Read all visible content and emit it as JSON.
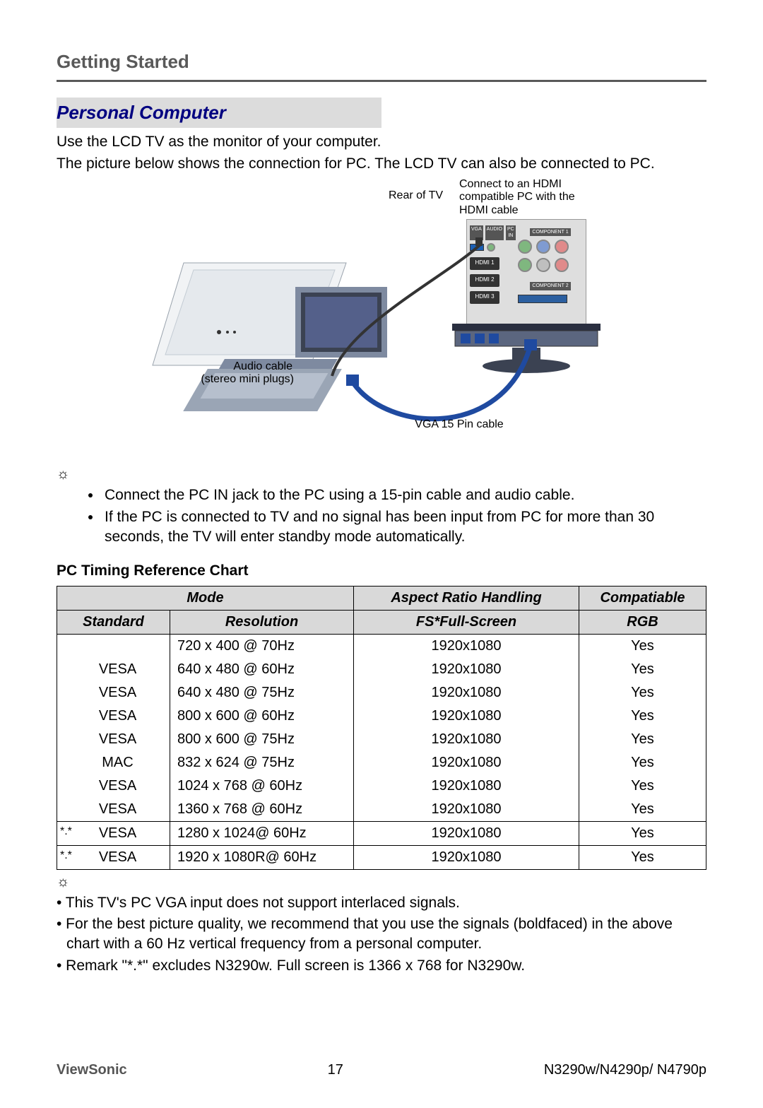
{
  "header": {
    "title": "Getting Started"
  },
  "section": {
    "title": "Personal Computer"
  },
  "intro": {
    "p1": "Use the LCD TV as the monitor of your computer.",
    "p2": "The picture below shows the connection for PC. The LCD TV can also be connected to PC."
  },
  "diagram": {
    "rear_label": "Rear of TV",
    "hdmi_note": "Connect to an HDMI compatible PC with the HDMI cable",
    "audio_label_1": "Audio cable",
    "audio_label_2": "(stereo mini plugs)",
    "vga_label": "VGA 15 Pin cable",
    "port_vga": "VGA",
    "port_audio": "AUDIO",
    "port_pcin": "PC IN",
    "port_hdmi1": "HDMI 1",
    "port_hdmi2": "HDMI 2",
    "port_hdmi3": "HDMI 3",
    "port_comp1": "COMPONENT 1",
    "port_comp2": "COMPONENT 2",
    "jack_colors": {
      "green": "#7fb77f",
      "blue": "#7f9bd1",
      "red": "#e08a8a",
      "gray": "#bfbfbf"
    }
  },
  "sun_glyph": "☼",
  "bullets": {
    "b1": "Connect the PC IN jack to the PC using a 15-pin cable and audio cable.",
    "b2": "If the PC is connected to TV and no signal has been input from PC for more than 30 seconds, the TV will enter standby mode automatically."
  },
  "table": {
    "heading": "PC Timing Reference Chart",
    "head_mode": "Mode",
    "head_aspect": "Aspect Ratio Handling",
    "head_compat": "Compatiable",
    "head_standard": "Standard",
    "head_resolution": "Resolution",
    "head_fs": "FS*Full-Screen",
    "head_rgb": "RGB",
    "rows": [
      {
        "mark": "",
        "standard": "",
        "resolution": "720 x 400 @ 70Hz",
        "fs": "1920x1080",
        "rgb": "Yes"
      },
      {
        "mark": "",
        "standard": "VESA",
        "resolution": "640 x 480 @ 60Hz",
        "fs": "1920x1080",
        "rgb": "Yes"
      },
      {
        "mark": "",
        "standard": "VESA",
        "resolution": "640 x 480 @ 75Hz",
        "fs": "1920x1080",
        "rgb": "Yes"
      },
      {
        "mark": "",
        "standard": "VESA",
        "resolution": "800 x 600 @ 60Hz",
        "fs": "1920x1080",
        "rgb": "Yes"
      },
      {
        "mark": "",
        "standard": "VESA",
        "resolution": "800 x 600 @ 75Hz",
        "fs": "1920x1080",
        "rgb": "Yes"
      },
      {
        "mark": "",
        "standard": "MAC",
        "resolution": "832 x 624 @ 75Hz",
        "fs": "1920x1080",
        "rgb": "Yes"
      },
      {
        "mark": "",
        "standard": "VESA",
        "resolution": "1024 x 768 @ 60Hz",
        "fs": "1920x1080",
        "rgb": "Yes"
      },
      {
        "mark": "",
        "standard": "VESA",
        "resolution": "1360 x 768 @ 60Hz",
        "fs": "1920x1080",
        "rgb": "Yes"
      },
      {
        "mark": "*.*",
        "standard": "VESA",
        "resolution": "1280 x 1024@ 60Hz",
        "fs": "1920x1080",
        "rgb": "Yes"
      },
      {
        "mark": "*.*",
        "standard": "VESA",
        "resolution": "1920 x 1080R@ 60Hz",
        "fs": "1920x1080",
        "rgb": "Yes"
      }
    ]
  },
  "notes": {
    "n1": "• This TV's PC VGA input does not support interlaced signals.",
    "n2": "• For the best picture quality, we recommend that you use the signals (boldfaced) in the above chart with a 60 Hz vertical frequency from a personal computer.",
    "n3": "• Remark \"*.*\" excludes N3290w. Full screen is 1366 x 768 for N3290w."
  },
  "footer": {
    "brand": "ViewSonic",
    "page": "17",
    "models": "N3290w/N4290p/ N4790p"
  }
}
